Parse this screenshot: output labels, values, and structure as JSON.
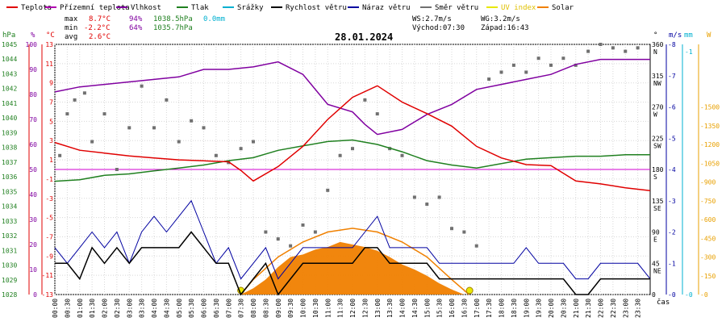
{
  "legend": [
    {
      "label": "Teplota",
      "color": "#e00000"
    },
    {
      "label": "Přízemní teplota",
      "color": "#b000b0"
    },
    {
      "label": "Vlhkost",
      "color": "#8000a0"
    },
    {
      "label": "Tlak",
      "color": "#208020"
    },
    {
      "label": "Srážky",
      "color": "#00b0d0"
    },
    {
      "label": "Rychlost větru",
      "color": "#000000"
    },
    {
      "label": "Náraz větru",
      "color": "#0000a0"
    },
    {
      "label": "Směr větru",
      "color": "#707070"
    },
    {
      "label": "UV index",
      "color": "#e8e800"
    },
    {
      "label": "Solar",
      "color": "#f08000"
    }
  ],
  "stats": {
    "max_label": "max",
    "max_temp": "8.7°C",
    "max_hum": "94%",
    "max_press": "1038.5hPa",
    "max_rain": "0.0mm",
    "min_label": "min",
    "min_temp": "-2.2°C",
    "min_hum": "64%",
    "min_press": "1035.7hPa",
    "avg_label": "avg",
    "avg_temp": "2.6°C"
  },
  "wind_info": {
    "ws": "WS:2.7m/s",
    "wg": "WG:3.2m/s"
  },
  "sun": {
    "sunrise": "Východ:07:30",
    "sunset": "Západ:16:43"
  },
  "date": "28.01.2024",
  "axis_units": {
    "hpa": "hPa",
    "pct": "%",
    "celsius": "°C",
    "deg": "°",
    "ms": "m/s",
    "mm": "mm",
    "watt": "W",
    "time": "čas"
  },
  "colors": {
    "temp": "#e00000",
    "hum": "#8000a0",
    "press": "#208020",
    "wind": "#000000",
    "gust": "#0000a0",
    "dir": "#707070",
    "solar": "#f08000",
    "uv": "#e8e800",
    "zero_line": "#d000d0",
    "rain": "#00b0d0"
  },
  "chart_data": {
    "type": "line",
    "title": "28.01.2024",
    "x_ticks": [
      "00:00",
      "00:30",
      "01:00",
      "01:30",
      "02:00",
      "02:30",
      "03:00",
      "03:30",
      "04:00",
      "04:30",
      "05:00",
      "05:30",
      "06:00",
      "06:30",
      "07:00",
      "07:30",
      "08:00",
      "08:30",
      "09:00",
      "09:30",
      "10:00",
      "10:30",
      "11:00",
      "11:30",
      "12:00",
      "12:30",
      "13:00",
      "13:30",
      "14:00",
      "14:30",
      "15:00",
      "15:30",
      "16:00",
      "16:30",
      "17:00",
      "17:30",
      "18:00",
      "18:30",
      "19:00",
      "19:30",
      "20:00",
      "20:30",
      "21:00",
      "21:30",
      "22:00",
      "22:30",
      "23:00",
      "23:30"
    ],
    "xlabel": "čas",
    "axes": {
      "pressure_ticks": [
        "1045",
        "1044",
        "1043",
        "1042",
        "1041",
        "1040",
        "1039",
        "1038",
        "1037",
        "1036",
        "1035",
        "1034",
        "1033",
        "1032",
        "1031",
        "1030",
        "1029",
        "1028"
      ],
      "humidity_ticks": [
        "100",
        "90",
        "80",
        "70",
        "60",
        "50",
        "40",
        "30",
        "20",
        "10",
        "0"
      ],
      "temp_ticks": [
        "13",
        "11",
        "9",
        "7",
        "5",
        "3",
        "1",
        "-1",
        "-3",
        "-5",
        "-7",
        "-9",
        "-11",
        "-13"
      ],
      "dir_ticks": [
        {
          "deg": "360",
          "name": "N"
        },
        {
          "deg": "315",
          "name": "NW"
        },
        {
          "deg": "270",
          "name": "W"
        },
        {
          "deg": "225",
          "name": "SW"
        },
        {
          "deg": "180",
          "name": "S"
        },
        {
          "deg": "135",
          "name": "SE"
        },
        {
          "deg": "90",
          "name": "E"
        },
        {
          "deg": "45",
          "name": "NE"
        },
        {
          "deg": "0",
          "name": ""
        }
      ],
      "ms_ticks": [
        "8",
        "7",
        "6",
        "5",
        "4",
        "3",
        "2",
        "1",
        "0"
      ],
      "mm_ticks": [
        "1",
        "0"
      ],
      "watt_ticks": [
        "1500",
        "1350",
        "1200",
        "1050",
        "900",
        "750",
        "600",
        "450",
        "300",
        "150",
        "0"
      ]
    },
    "ylim_temp": [
      -13,
      13
    ],
    "ylim_pressure": [
      1028,
      1045
    ],
    "ylim_humidity": [
      0,
      100
    ],
    "ylim_wind": [
      0,
      8
    ],
    "ylim_dir": [
      0,
      360
    ],
    "ylim_solar": [
      0,
      1500
    ],
    "series": {
      "temperature": {
        "name": "Teplota",
        "x": [
          0,
          1,
          2,
          3,
          4,
          5,
          6,
          7,
          7.5,
          8,
          9,
          10,
          11,
          12,
          13,
          14,
          15,
          16,
          17,
          18,
          19,
          20,
          21,
          22,
          23,
          24
        ],
        "y": [
          2.8,
          2.0,
          1.7,
          1.4,
          1.2,
          1.0,
          0.9,
          0.8,
          -0.1,
          -1.2,
          0.3,
          2.4,
          5.2,
          7.5,
          8.7,
          7.0,
          5.8,
          4.5,
          2.4,
          1.2,
          0.5,
          0.4,
          -1.2,
          -1.5,
          -1.9,
          -2.2
        ]
      },
      "humidity": {
        "name": "Vlhkost",
        "x": [
          0,
          1,
          2,
          3,
          4,
          5,
          6,
          7,
          8,
          9,
          10,
          11,
          12,
          12.5,
          13,
          14,
          15,
          16,
          17,
          18,
          19,
          20,
          21,
          22,
          23,
          24
        ],
        "y": [
          81,
          83,
          84,
          85,
          86,
          87,
          90,
          90,
          91,
          93,
          88,
          76,
          73,
          68,
          64,
          66,
          72,
          76,
          82,
          84,
          86,
          88,
          92,
          94,
          94,
          94
        ]
      },
      "pressure": {
        "name": "Tlak",
        "x": [
          0,
          1,
          2,
          3,
          4,
          5,
          6,
          7,
          8,
          9,
          10,
          11,
          12,
          13,
          14,
          15,
          16,
          17,
          18,
          19,
          20,
          21,
          22,
          23,
          24
        ],
        "y": [
          1035.7,
          1035.8,
          1036.1,
          1036.2,
          1036.4,
          1036.6,
          1036.8,
          1037.1,
          1037.3,
          1037.8,
          1038.1,
          1038.4,
          1038.5,
          1038.2,
          1037.7,
          1037.1,
          1036.8,
          1036.6,
          1036.9,
          1037.2,
          1037.3,
          1037.4,
          1037.4,
          1037.5,
          1037.5
        ]
      },
      "wind_speed": {
        "name": "Rychlost větru",
        "x": [
          0,
          0.5,
          1,
          1.5,
          2,
          2.5,
          3,
          3.5,
          4,
          4.5,
          5,
          5.5,
          6,
          6.5,
          7,
          7.5,
          8,
          8.5,
          9,
          9.5,
          10,
          10.5,
          11,
          11.5,
          12,
          12.5,
          13,
          13.5,
          14,
          14.5,
          15,
          15.5,
          16,
          16.5,
          17,
          17.5,
          18,
          18.5,
          19,
          19.5,
          20,
          20.5,
          21,
          21.5,
          22,
          22.5,
          23,
          23.5,
          24
        ],
        "y": [
          1.0,
          1.0,
          0.5,
          1.5,
          1.0,
          1.5,
          1.0,
          1.5,
          1.5,
          1.5,
          1.5,
          2.0,
          1.5,
          1.0,
          1.0,
          0,
          0.5,
          1.0,
          0,
          0.5,
          1.0,
          1.0,
          1.0,
          1.0,
          1.0,
          1.5,
          1.5,
          1.0,
          1.0,
          1.0,
          1.0,
          0.5,
          0.5,
          0.5,
          0.5,
          0.5,
          0.5,
          0.5,
          0.5,
          0.5,
          0.5,
          0.5,
          0,
          0,
          0.5,
          0.5,
          0.5,
          0.5,
          0.5
        ]
      },
      "wind_gust": {
        "name": "Náraz větru",
        "x": [
          0,
          0.5,
          1,
          1.5,
          2,
          2.5,
          3,
          3.5,
          4,
          4.5,
          5,
          5.5,
          6,
          6.5,
          7,
          7.5,
          8,
          8.5,
          9,
          9.5,
          10,
          10.5,
          11,
          11.5,
          12,
          12.5,
          13,
          13.5,
          14,
          14.5,
          15,
          15.5,
          16,
          16.5,
          17,
          17.5,
          18,
          18.5,
          19,
          19.5,
          20,
          20.5,
          21,
          21.5,
          22,
          22.5,
          23,
          23.5,
          24
        ],
        "y": [
          1.5,
          1.0,
          1.5,
          2.0,
          1.5,
          2.0,
          1.0,
          2.0,
          2.5,
          2.0,
          2.5,
          3.0,
          2.0,
          1.0,
          1.5,
          0.5,
          1.0,
          1.5,
          0.5,
          1.0,
          1.5,
          1.5,
          1.5,
          1.5,
          1.5,
          2.0,
          2.5,
          1.5,
          1.5,
          1.5,
          1.5,
          1.0,
          1.0,
          1.0,
          1.0,
          1.0,
          1.0,
          1.0,
          1.5,
          1.0,
          1.0,
          1.0,
          0.5,
          0.5,
          1.0,
          1.0,
          1.0,
          1.0,
          0.5
        ]
      },
      "wind_direction": {
        "name": "Směr větru",
        "x": [
          0.2,
          0.5,
          0.8,
          1.2,
          1.5,
          2.0,
          2.5,
          3.0,
          3.5,
          4.0,
          4.5,
          5.0,
          5.5,
          6.0,
          6.5,
          7.0,
          7.5,
          8.0,
          8.5,
          9.0,
          9.5,
          10.0,
          10.5,
          11.0,
          11.5,
          12.0,
          12.5,
          13.0,
          13.5,
          14.0,
          14.5,
          15.0,
          15.5,
          16.0,
          16.5,
          17.0,
          17.5,
          18.0,
          18.5,
          19.0,
          19.5,
          20.0,
          20.5,
          21.0,
          21.5,
          22.0,
          22.5,
          23.0,
          23.5
        ],
        "y": [
          200,
          260,
          280,
          290,
          220,
          260,
          180,
          240,
          300,
          240,
          280,
          220,
          250,
          240,
          200,
          190,
          210,
          220,
          90,
          80,
          70,
          100,
          90,
          150,
          200,
          210,
          280,
          260,
          210,
          200,
          140,
          130,
          140,
          95,
          90,
          70,
          310,
          320,
          330,
          320,
          340,
          330,
          340,
          330,
          350,
          360,
          355,
          350,
          355
        ]
      },
      "solar": {
        "name": "Solar",
        "x": [
          7.5,
          8,
          8.5,
          9,
          9.5,
          10,
          10.5,
          11,
          11.5,
          12,
          12.5,
          13,
          13.5,
          14,
          14.5,
          15,
          15.5,
          16,
          16.5
        ],
        "y": [
          0,
          50,
          120,
          220,
          300,
          320,
          360,
          380,
          420,
          400,
          380,
          350,
          300,
          240,
          200,
          150,
          90,
          40,
          0
        ]
      },
      "solar_theoretical": {
        "name": "Solar",
        "x": [
          7.5,
          8,
          9,
          10,
          11,
          12,
          13,
          14,
          15,
          16,
          16.7
        ],
        "y": [
          0,
          120,
          300,
          420,
          500,
          530,
          500,
          420,
          300,
          120,
          0
        ]
      }
    }
  }
}
